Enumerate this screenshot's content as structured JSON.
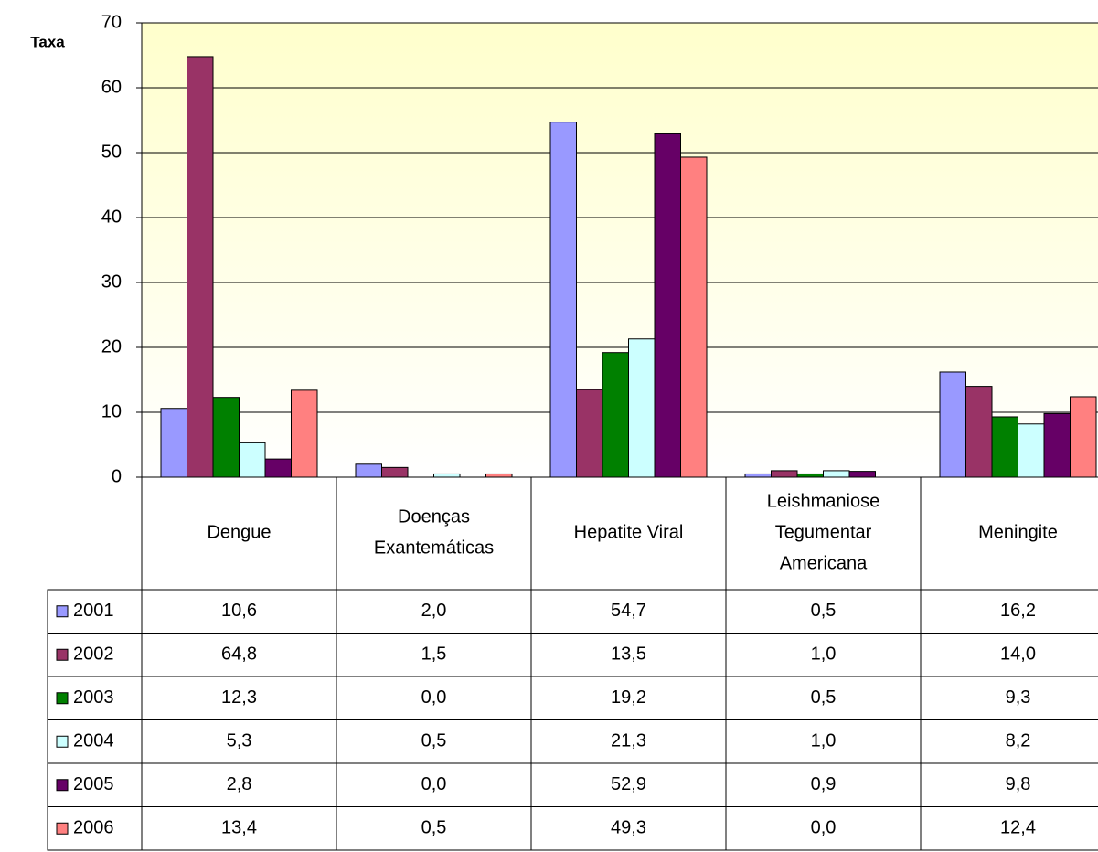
{
  "chart_data": {
    "type": "bar",
    "y_label": "Taxa",
    "categories": [
      "Dengue",
      "Doenças Exantemáticas",
      "Hepatite Viral",
      "Leishmaniose Tegumentar Americana",
      "Meningite"
    ],
    "ylim": [
      0,
      70
    ],
    "yticks": [
      0,
      10,
      20,
      30,
      40,
      50,
      60,
      70
    ],
    "grid": true,
    "series": [
      {
        "name": "2001",
        "color": "#9999ff",
        "values": [
          10.6,
          2.0,
          54.7,
          0.5,
          16.2
        ],
        "value_labels": [
          "10,6",
          "2,0",
          "54,7",
          "0,5",
          "16,2"
        ]
      },
      {
        "name": "2002",
        "color": "#993366",
        "values": [
          64.8,
          1.5,
          13.5,
          1.0,
          14.0
        ],
        "value_labels": [
          "64,8",
          "1,5",
          "13,5",
          "1,0",
          "14,0"
        ]
      },
      {
        "name": "2003",
        "color": "#008000",
        "values": [
          12.3,
          0.0,
          19.2,
          0.5,
          9.3
        ],
        "value_labels": [
          "12,3",
          "0,0",
          "19,2",
          "0,5",
          "9,3"
        ]
      },
      {
        "name": "2004",
        "color": "#ccffff",
        "values": [
          5.3,
          0.5,
          21.3,
          1.0,
          8.2
        ],
        "value_labels": [
          "5,3",
          "0,5",
          "21,3",
          "1,0",
          "8,2"
        ]
      },
      {
        "name": "2005",
        "color": "#660066",
        "values": [
          2.8,
          0.0,
          52.9,
          0.9,
          9.8
        ],
        "value_labels": [
          "2,8",
          "0,0",
          "52,9",
          "0,9",
          "9,8"
        ]
      },
      {
        "name": "2006",
        "color": "#ff8080",
        "values": [
          13.4,
          0.5,
          49.3,
          0.0,
          12.4
        ],
        "value_labels": [
          "13,4",
          "0,5",
          "49,3",
          "0,0",
          "12,4"
        ]
      }
    ]
  }
}
